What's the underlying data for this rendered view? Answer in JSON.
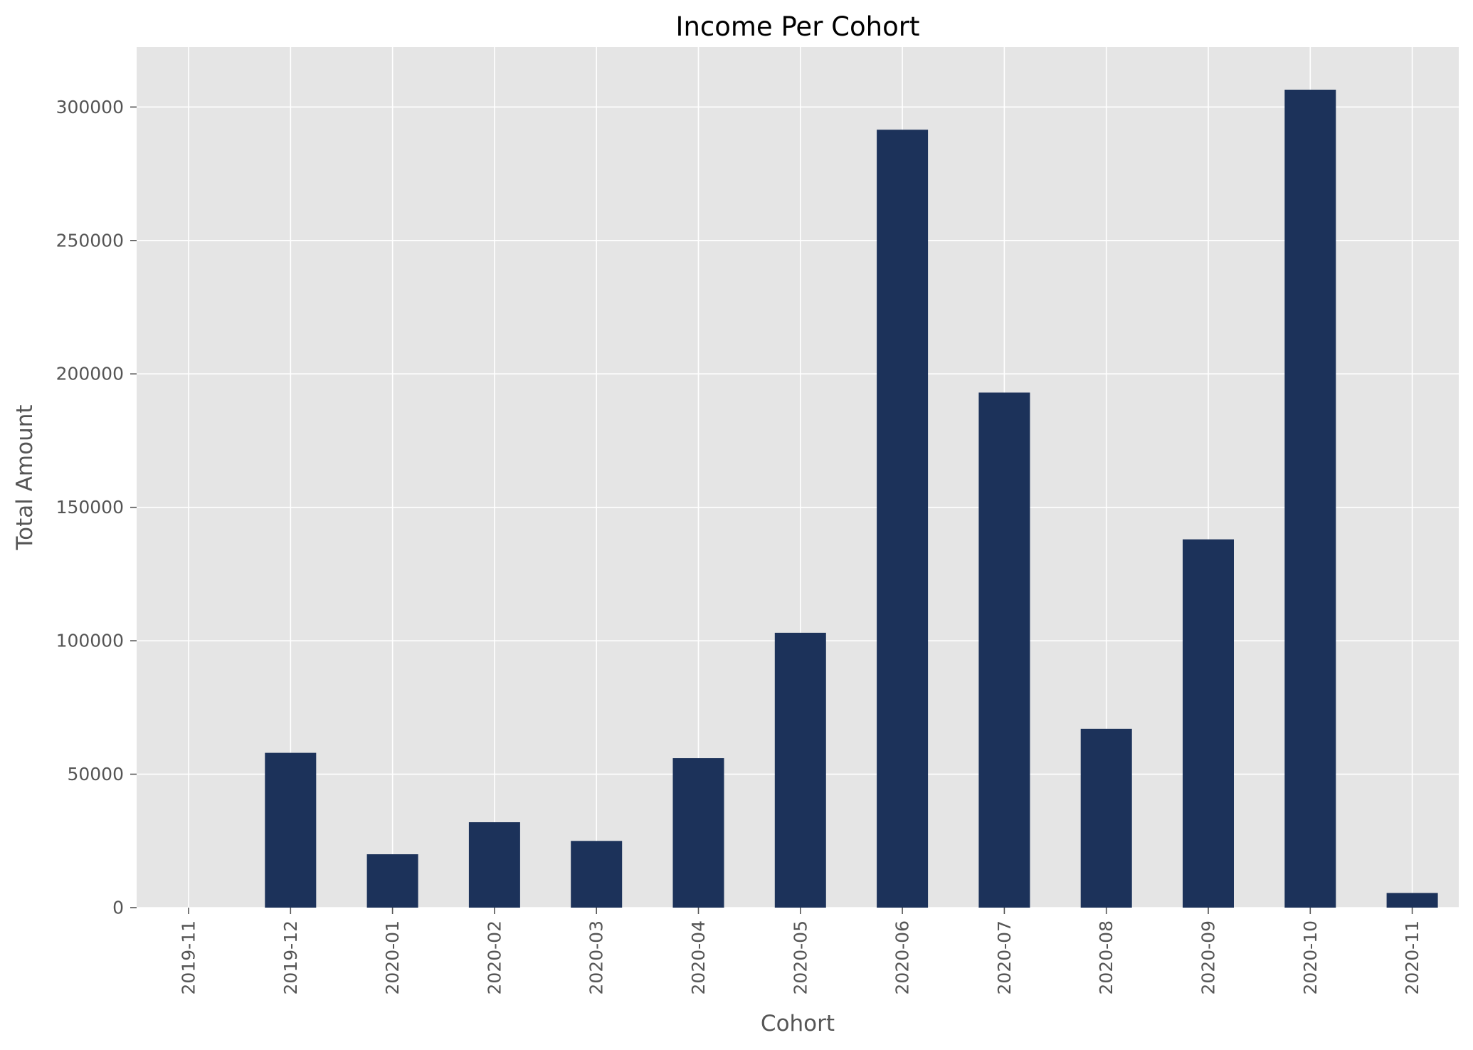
{
  "chart_data": {
    "type": "bar",
    "title": "Income Per Cohort",
    "xlabel": "Cohort",
    "ylabel": "Total Amount",
    "categories": [
      "2019-11",
      "2019-12",
      "2020-01",
      "2020-02",
      "2020-03",
      "2020-04",
      "2020-05",
      "2020-06",
      "2020-07",
      "2020-08",
      "2020-09",
      "2020-10",
      "2020-11"
    ],
    "values": [
      0,
      58000,
      20000,
      32000,
      25000,
      56000,
      103000,
      291500,
      193000,
      67000,
      138000,
      306500,
      5500
    ],
    "ylim": [
      0,
      322500
    ],
    "yticks": [
      0,
      50000,
      100000,
      150000,
      200000,
      250000,
      300000
    ],
    "ytick_labels": [
      "0",
      "50000",
      "100000",
      "150000",
      "200000",
      "250000",
      "300000"
    ],
    "grid": true,
    "legend": "none",
    "colors": {
      "bar": "#1c325a",
      "plot_background": "#e5e5e5",
      "grid": "#ffffff",
      "tick_text": "#555555",
      "title_text": "#000000"
    }
  }
}
